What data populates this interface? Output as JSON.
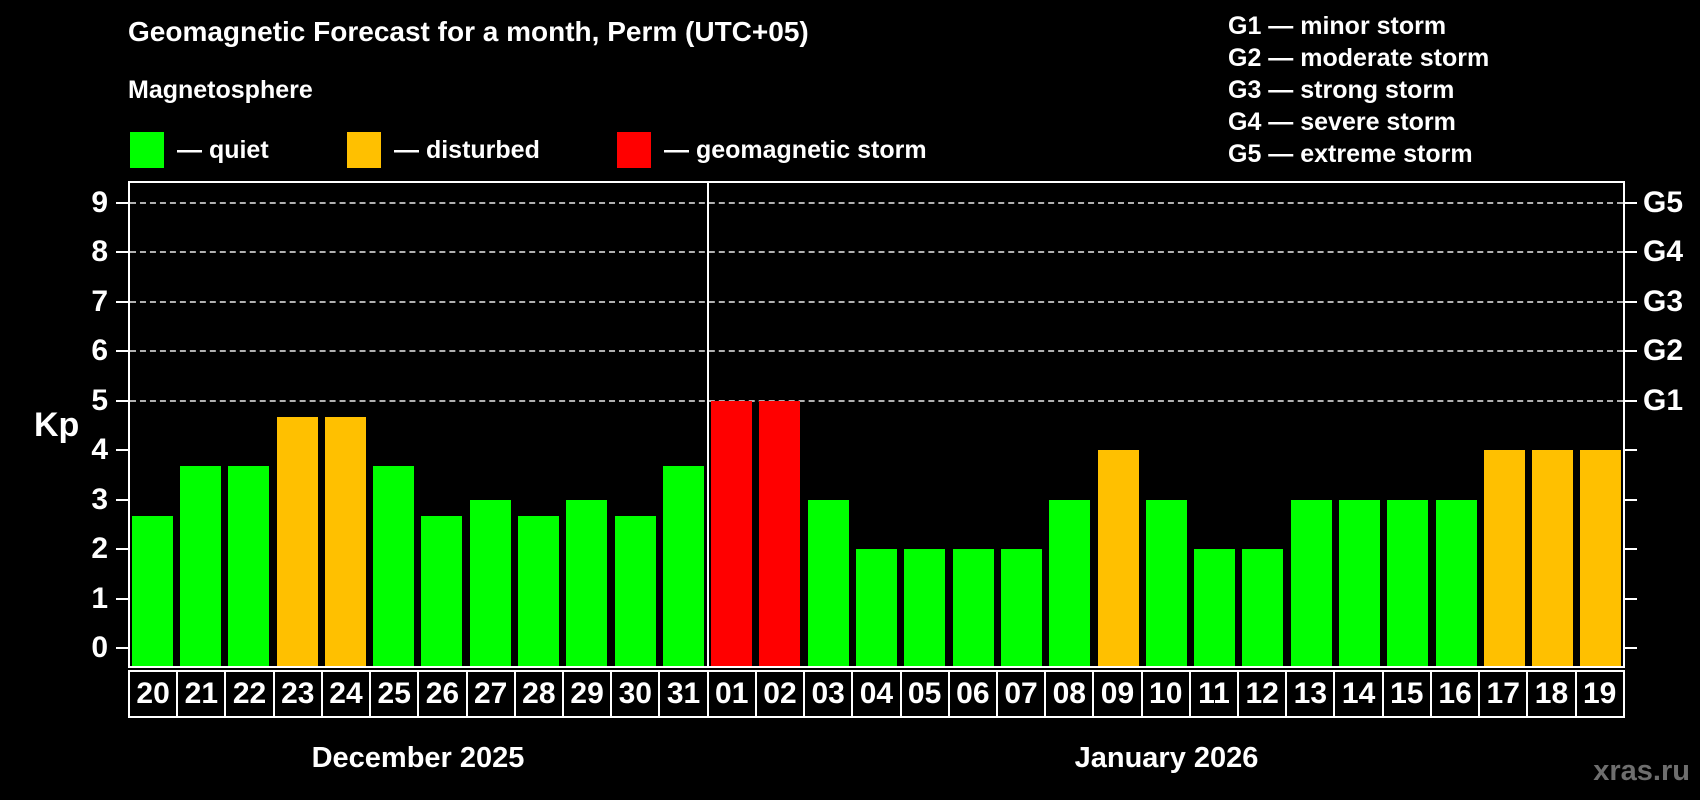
{
  "title": "Geomagnetic Forecast for a month, Perm (UTC+05)",
  "legend": {
    "heading": "Magnetosphere",
    "items": [
      {
        "label": "— quiet",
        "status": "quiet"
      },
      {
        "label": "— disturbed",
        "status": "disturbed"
      },
      {
        "label": "— geomagnetic storm",
        "status": "storm"
      }
    ]
  },
  "storm_scale": [
    "G1 — minor storm",
    "G2 — moderate storm",
    "G3 — strong storm",
    "G4 — severe storm",
    "G5 — extreme storm"
  ],
  "colors": {
    "quiet": "#00ff00",
    "disturbed": "#ffc000",
    "storm": "#ff0000",
    "axis": "#ffffff",
    "grid": "#b0b0b0",
    "background": "#000000",
    "watermark": "#6e6e6e"
  },
  "chart_data": {
    "type": "bar",
    "title": "Geomagnetic Forecast for a month, Perm (UTC+05)",
    "xlabel": "",
    "ylabel": "Kp",
    "ylim": [
      -0.4,
      9.45
    ],
    "y_ticks": [
      0,
      1,
      2,
      3,
      4,
      5,
      6,
      7,
      8,
      9
    ],
    "gridlines_at": [
      5,
      6,
      7,
      8,
      9
    ],
    "grid": "dashed",
    "right_axis": {
      "5": "G1",
      "6": "G2",
      "7": "G3",
      "8": "G4",
      "9": "G5"
    },
    "legend_position": "top-left",
    "months": [
      {
        "label": "December 2025",
        "days": [
          "20",
          "21",
          "22",
          "23",
          "24",
          "25",
          "26",
          "27",
          "28",
          "29",
          "30",
          "31"
        ],
        "values": [
          2.67,
          3.67,
          3.67,
          4.67,
          4.67,
          3.67,
          2.67,
          3,
          2.67,
          3,
          2.67,
          3.67
        ],
        "status": [
          "quiet",
          "quiet",
          "quiet",
          "disturbed",
          "disturbed",
          "quiet",
          "quiet",
          "quiet",
          "quiet",
          "quiet",
          "quiet",
          "quiet"
        ]
      },
      {
        "label": "January 2026",
        "days": [
          "01",
          "02",
          "03",
          "04",
          "05",
          "06",
          "07",
          "08",
          "09",
          "10",
          "11",
          "12",
          "13",
          "14",
          "15",
          "16",
          "17",
          "18",
          "19"
        ],
        "values": [
          5,
          5,
          3,
          2,
          2,
          2,
          2,
          3,
          4,
          3,
          2,
          2,
          3,
          3,
          3,
          3,
          4,
          4,
          4
        ],
        "status": [
          "storm",
          "storm",
          "quiet",
          "quiet",
          "quiet",
          "quiet",
          "quiet",
          "quiet",
          "disturbed",
          "quiet",
          "quiet",
          "quiet",
          "quiet",
          "quiet",
          "quiet",
          "quiet",
          "disturbed",
          "disturbed",
          "disturbed"
        ]
      }
    ]
  },
  "watermark": "xras.ru"
}
